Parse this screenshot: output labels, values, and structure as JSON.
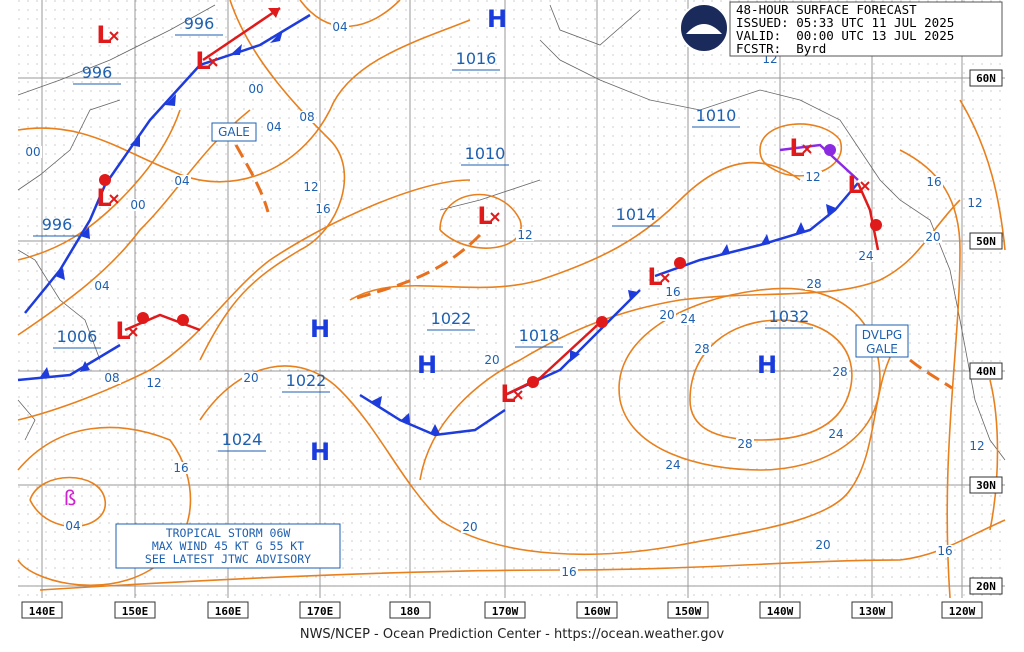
{
  "header": {
    "lines": [
      "48-HOUR SURFACE FORECAST",
      "ISSUED: 05:33 UTC 11 JUL 2025",
      "VALID:  00:00 UTC 13 JUL 2025",
      "FCSTR:  Byrd"
    ]
  },
  "footer": "NWS/NCEP - Ocean Prediction Center - https://ocean.weather.gov",
  "longitudes": [
    "140E",
    "150E",
    "160E",
    "170E",
    "180",
    "170W",
    "160W",
    "150W",
    "140W",
    "130W",
    "120W"
  ],
  "latitudes": [
    "60N",
    "50N",
    "40N",
    "30N",
    "20N"
  ],
  "pressures": [
    "996",
    "996",
    "996",
    "1006",
    "1016",
    "1010",
    "1010",
    "1014",
    "1022",
    "1018",
    "1022",
    "1024",
    "1032"
  ],
  "isobar_labels": [
    "04",
    "00",
    "04",
    "08",
    "00",
    "04",
    "00",
    "12",
    "16",
    "04",
    "08",
    "12",
    "20",
    "16",
    "04",
    "20",
    "16",
    "20",
    "12",
    "16",
    "20",
    "24",
    "28",
    "28",
    "28",
    "24",
    "28",
    "24",
    "20",
    "16",
    "12",
    "24",
    "20",
    "16",
    "12",
    "12",
    "12"
  ],
  "highs": [
    "H",
    "H",
    "H",
    "H",
    "H"
  ],
  "lows": [
    "L",
    "L",
    "L",
    "L",
    "L",
    "L",
    "L",
    "L",
    "L"
  ],
  "annotations": {
    "gale": "GALE",
    "dvlpg_gale": [
      "DVLPG",
      "GALE"
    ],
    "tropical_storm": [
      "TROPICAL STORM 06W",
      "MAX WIND 45 KT G 55 KT",
      "SEE LATEST JTWC ADVISORY"
    ]
  }
}
